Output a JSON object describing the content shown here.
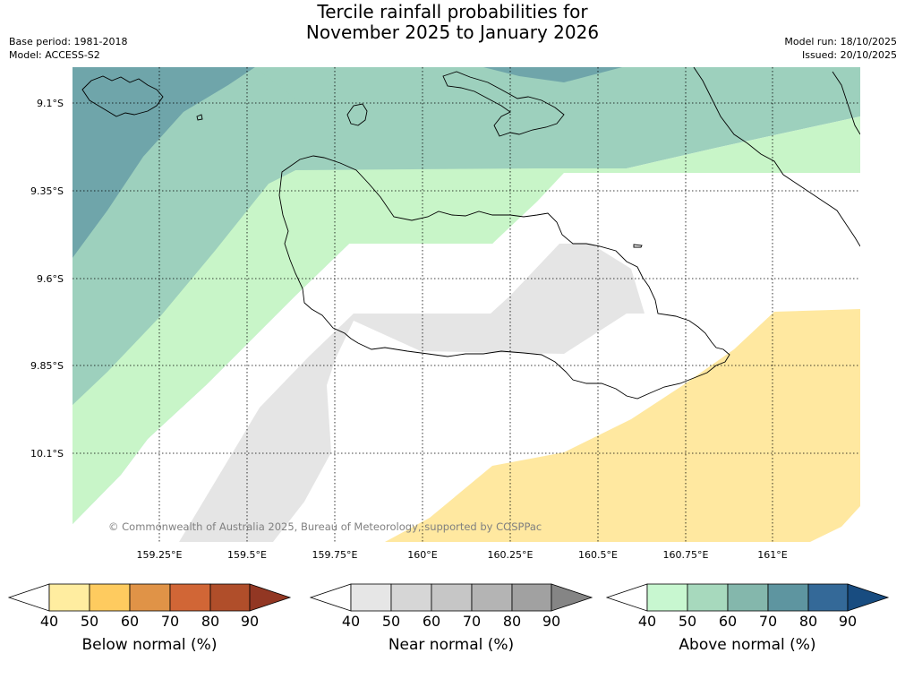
{
  "title": {
    "line1": "Tercile rainfall probabilities for",
    "line2": "November 2025 to January 2026"
  },
  "meta": {
    "base_period": "Base period: 1981-2018",
    "model": "Model: ACCESS-S2",
    "model_run": "Model run: 18/10/2025",
    "issued": "Issued: 20/10/2025"
  },
  "map": {
    "lat_labels": [
      "9.1°S",
      "9.35°S",
      "9.6°S",
      "9.85°S",
      "10.1°S"
    ],
    "lon_labels": [
      "159.25°E",
      "159.5°E",
      "159.75°E",
      "160°E",
      "160.25°E",
      "160.5°E",
      "160.75°E",
      "161°E"
    ],
    "copyright": "© Commonwealth of Australia 2025, Bureau of Meteorology, supported by COSPPac",
    "colors": {
      "above_50": "#c8f5c8",
      "above_60": "#9dd0bd",
      "above_70": "#6fa5aa",
      "near_50": "#e5e5e5",
      "below_50": "#ffe8a0"
    }
  },
  "colorbars": [
    {
      "label": "Below normal (%)",
      "ticks": [
        "40",
        "50",
        "60",
        "70",
        "80",
        "90"
      ],
      "colors": [
        "#ffffff",
        "#ffeda0",
        "#fecb5f",
        "#e09347",
        "#d16636",
        "#b04e2a",
        "#923723"
      ]
    },
    {
      "label": "Near normal (%)",
      "ticks": [
        "40",
        "50",
        "60",
        "70",
        "80",
        "90"
      ],
      "colors": [
        "#ffffff",
        "#e6e6e6",
        "#d6d6d6",
        "#c6c6c6",
        "#b4b4b4",
        "#a1a1a1",
        "#858585"
      ]
    },
    {
      "label": "Above normal (%)",
      "ticks": [
        "40",
        "50",
        "60",
        "70",
        "80",
        "90"
      ],
      "colors": [
        "#ffffff",
        "#c8f7d0",
        "#a7d9bd",
        "#84b7ac",
        "#5e95a0",
        "#346998",
        "#184c80"
      ]
    }
  ]
}
